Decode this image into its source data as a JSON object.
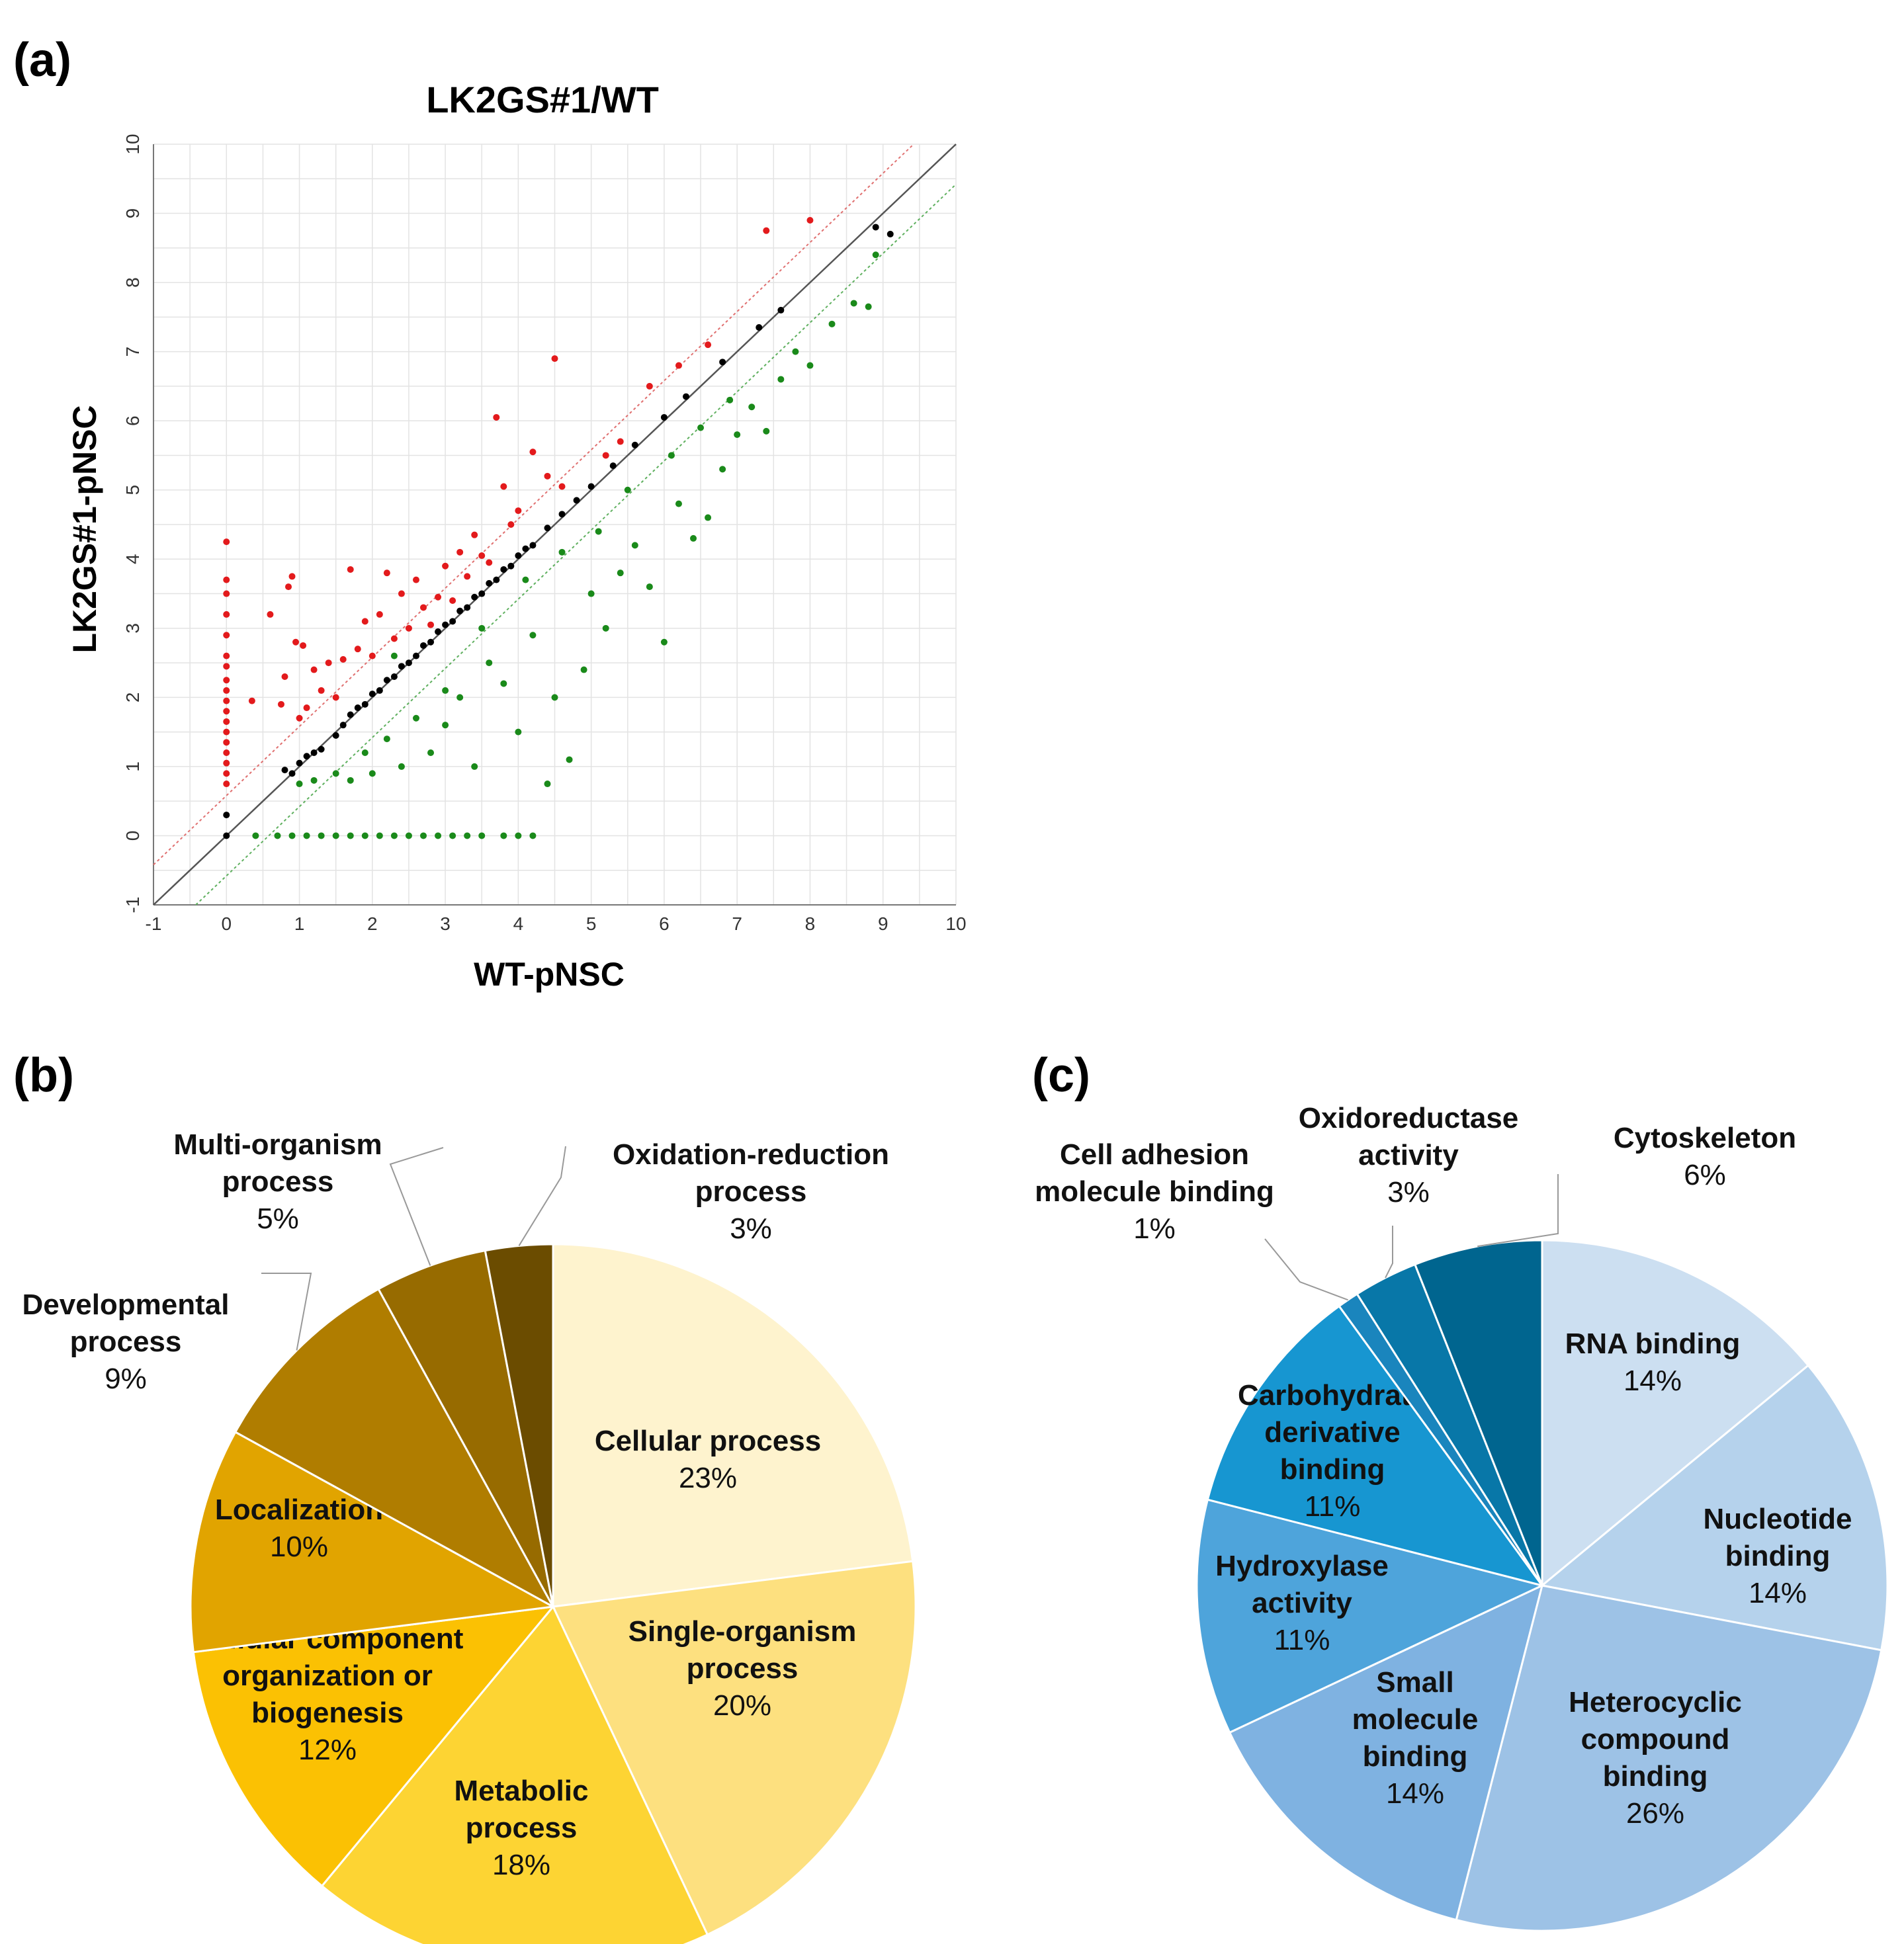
{
  "panels": {
    "a": {
      "label": "(a)"
    },
    "b": {
      "label": "(b)"
    },
    "c": {
      "label": "(c)"
    }
  },
  "chart_data": [
    {
      "type": "scatter",
      "title": "LK2GS#1/WT",
      "xlabel": "WT-pNSC",
      "ylabel": "LK2GS#1-pNSC",
      "xlim": [
        -1,
        10
      ],
      "ylim": [
        -1,
        10
      ],
      "xticks": [
        "-1",
        "0",
        "1",
        "2",
        "3",
        "4",
        "5",
        "6",
        "7",
        "8",
        "9",
        "10"
      ],
      "yticks": [
        "-1",
        "0",
        "1",
        "2",
        "3",
        "4",
        "5",
        "6",
        "7",
        "8",
        "9",
        "10"
      ],
      "grid": true,
      "reference_lines": [
        {
          "name": "identity",
          "slope": 1,
          "intercept": 0,
          "color": "#555555"
        },
        {
          "name": "up-threshold",
          "slope": 1,
          "intercept": 0.58,
          "color": "#e07070"
        },
        {
          "name": "down-threshold",
          "slope": 1,
          "intercept": -0.58,
          "color": "#5fb05f"
        }
      ],
      "series": [
        {
          "name": "up-regulated",
          "color": "#e31a1c",
          "points": [
            [
              0,
              0.75
            ],
            [
              0,
              0.9
            ],
            [
              0,
              1.05
            ],
            [
              0,
              1.2
            ],
            [
              0,
              1.35
            ],
            [
              0,
              1.5
            ],
            [
              0,
              1.65
            ],
            [
              0,
              1.8
            ],
            [
              0,
              1.95
            ],
            [
              0,
              2.1
            ],
            [
              0,
              2.25
            ],
            [
              0,
              2.45
            ],
            [
              0,
              2.6
            ],
            [
              0,
              2.9
            ],
            [
              0,
              3.2
            ],
            [
              0,
              3.5
            ],
            [
              0,
              3.7
            ],
            [
              0,
              4.25
            ],
            [
              0.35,
              1.95
            ],
            [
              0.6,
              3.2
            ],
            [
              0.75,
              1.9
            ],
            [
              0.8,
              2.3
            ],
            [
              0.85,
              3.6
            ],
            [
              0.9,
              3.75
            ],
            [
              0.95,
              2.8
            ],
            [
              1.0,
              1.7
            ],
            [
              1.05,
              2.75
            ],
            [
              1.1,
              1.85
            ],
            [
              1.2,
              2.4
            ],
            [
              1.3,
              2.1
            ],
            [
              1.4,
              2.5
            ],
            [
              1.5,
              2.0
            ],
            [
              1.6,
              2.55
            ],
            [
              1.7,
              3.85
            ],
            [
              1.8,
              2.7
            ],
            [
              1.9,
              3.1
            ],
            [
              2.0,
              2.6
            ],
            [
              2.1,
              3.2
            ],
            [
              2.2,
              3.8
            ],
            [
              2.3,
              2.85
            ],
            [
              2.4,
              3.5
            ],
            [
              2.5,
              3.0
            ],
            [
              2.6,
              3.7
            ],
            [
              2.7,
              3.3
            ],
            [
              2.8,
              3.05
            ],
            [
              2.9,
              3.45
            ],
            [
              3.0,
              3.9
            ],
            [
              3.1,
              3.4
            ],
            [
              3.2,
              4.1
            ],
            [
              3.3,
              3.75
            ],
            [
              3.4,
              4.35
            ],
            [
              3.5,
              4.05
            ],
            [
              3.6,
              3.95
            ],
            [
              3.7,
              6.05
            ],
            [
              3.8,
              5.05
            ],
            [
              3.9,
              4.5
            ],
            [
              4.0,
              4.7
            ],
            [
              4.2,
              5.55
            ],
            [
              4.4,
              5.2
            ],
            [
              4.5,
              6.9
            ],
            [
              4.6,
              5.05
            ],
            [
              5.2,
              5.5
            ],
            [
              5.4,
              5.7
            ],
            [
              5.8,
              6.5
            ],
            [
              6.2,
              6.8
            ],
            [
              6.6,
              7.1
            ],
            [
              7.4,
              8.75
            ],
            [
              8.0,
              8.9
            ]
          ]
        },
        {
          "name": "unchanged",
          "color": "#000000",
          "points": [
            [
              0,
              0
            ],
            [
              0,
              0.3
            ],
            [
              0.8,
              0.95
            ],
            [
              0.9,
              0.9
            ],
            [
              1.0,
              1.05
            ],
            [
              1.1,
              1.15
            ],
            [
              1.2,
              1.2
            ],
            [
              1.3,
              1.25
            ],
            [
              1.5,
              1.45
            ],
            [
              1.6,
              1.6
            ],
            [
              1.7,
              1.75
            ],
            [
              1.8,
              1.85
            ],
            [
              1.9,
              1.9
            ],
            [
              2.0,
              2.05
            ],
            [
              2.1,
              2.1
            ],
            [
              2.2,
              2.25
            ],
            [
              2.3,
              2.3
            ],
            [
              2.4,
              2.45
            ],
            [
              2.5,
              2.5
            ],
            [
              2.6,
              2.6
            ],
            [
              2.7,
              2.75
            ],
            [
              2.8,
              2.8
            ],
            [
              2.9,
              2.95
            ],
            [
              3.0,
              3.05
            ],
            [
              3.1,
              3.1
            ],
            [
              3.2,
              3.25
            ],
            [
              3.3,
              3.3
            ],
            [
              3.4,
              3.45
            ],
            [
              3.5,
              3.5
            ],
            [
              3.6,
              3.65
            ],
            [
              3.7,
              3.7
            ],
            [
              3.8,
              3.85
            ],
            [
              3.9,
              3.9
            ],
            [
              4.0,
              4.05
            ],
            [
              4.1,
              4.15
            ],
            [
              4.2,
              4.2
            ],
            [
              4.4,
              4.45
            ],
            [
              4.6,
              4.65
            ],
            [
              4.8,
              4.85
            ],
            [
              5.0,
              5.05
            ],
            [
              5.3,
              5.35
            ],
            [
              5.6,
              5.65
            ],
            [
              6.0,
              6.05
            ],
            [
              6.3,
              6.35
            ],
            [
              6.8,
              6.85
            ],
            [
              7.3,
              7.35
            ],
            [
              7.6,
              7.6
            ],
            [
              8.9,
              8.8
            ],
            [
              9.1,
              8.7
            ]
          ]
        },
        {
          "name": "down-regulated",
          "color": "#1a8a1a",
          "points": [
            [
              0.4,
              0
            ],
            [
              0.7,
              0
            ],
            [
              0.9,
              0
            ],
            [
              1.1,
              0
            ],
            [
              1.3,
              0
            ],
            [
              1.5,
              0
            ],
            [
              1.7,
              0
            ],
            [
              1.9,
              0
            ],
            [
              2.1,
              0
            ],
            [
              2.3,
              0
            ],
            [
              2.5,
              0
            ],
            [
              2.7,
              0
            ],
            [
              2.9,
              0
            ],
            [
              3.1,
              0
            ],
            [
              3.3,
              0
            ],
            [
              3.5,
              0
            ],
            [
              3.8,
              0
            ],
            [
              4.0,
              0
            ],
            [
              4.2,
              0
            ],
            [
              1.0,
              0.75
            ],
            [
              1.2,
              0.8
            ],
            [
              1.5,
              0.9
            ],
            [
              1.7,
              0.8
            ],
            [
              1.9,
              1.2
            ],
            [
              2.0,
              0.9
            ],
            [
              2.2,
              1.4
            ],
            [
              2.4,
              1.0
            ],
            [
              2.6,
              1.7
            ],
            [
              2.8,
              1.2
            ],
            [
              3.0,
              1.6
            ],
            [
              3.2,
              2.0
            ],
            [
              3.4,
              1.0
            ],
            [
              3.6,
              2.5
            ],
            [
              3.8,
              2.2
            ],
            [
              4.0,
              1.5
            ],
            [
              4.2,
              2.9
            ],
            [
              4.4,
              0.75
            ],
            [
              4.5,
              2.0
            ],
            [
              4.7,
              1.1
            ],
            [
              4.9,
              2.4
            ],
            [
              5.0,
              3.5
            ],
            [
              5.2,
              3.0
            ],
            [
              5.4,
              3.8
            ],
            [
              5.6,
              4.2
            ],
            [
              5.8,
              3.6
            ],
            [
              6.0,
              2.8
            ],
            [
              6.2,
              4.8
            ],
            [
              6.4,
              4.3
            ],
            [
              6.6,
              4.6
            ],
            [
              6.8,
              5.3
            ],
            [
              7.0,
              5.8
            ],
            [
              7.2,
              6.2
            ],
            [
              7.4,
              5.85
            ],
            [
              7.6,
              6.6
            ],
            [
              7.8,
              7.0
            ],
            [
              8.0,
              6.8
            ],
            [
              8.3,
              7.4
            ],
            [
              8.6,
              7.7
            ],
            [
              8.9,
              8.4
            ],
            [
              8.8,
              7.65
            ],
            [
              2.3,
              2.6
            ],
            [
              3.0,
              2.1
            ],
            [
              3.5,
              3.0
            ],
            [
              4.1,
              3.7
            ],
            [
              4.6,
              4.1
            ],
            [
              5.1,
              4.4
            ],
            [
              5.5,
              5.0
            ],
            [
              6.1,
              5.5
            ],
            [
              6.5,
              5.9
            ],
            [
              6.9,
              6.3
            ]
          ]
        }
      ]
    },
    {
      "type": "pie",
      "slices": [
        {
          "label_lines": [
            "Cellular process"
          ],
          "percent_label": "23%",
          "value": 23,
          "color": "#FEF3CE"
        },
        {
          "label_lines": [
            "Single-organism",
            "process"
          ],
          "percent_label": "20%",
          "value": 20,
          "color": "#FDE07F"
        },
        {
          "label_lines": [
            "Metabolic",
            "process"
          ],
          "percent_label": "18%",
          "value": 18,
          "color": "#FDD433"
        },
        {
          "label_lines": [
            "Cellular component",
            "organization or",
            "biogenesis"
          ],
          "percent_label": "12%",
          "value": 12,
          "color": "#FBC103"
        },
        {
          "label_lines": [
            "Localization"
          ],
          "percent_label": "10%",
          "value": 10,
          "color": "#E1A400"
        },
        {
          "label_lines": [
            "Developmental",
            "process"
          ],
          "percent_label": "9%",
          "value": 9,
          "color": "#B07D00"
        },
        {
          "label_lines": [
            "Multi-organism",
            "process"
          ],
          "percent_label": "5%",
          "value": 5,
          "color": "#976B00"
        },
        {
          "label_lines": [
            "Oxidation-reduction",
            "process"
          ],
          "percent_label": "3%",
          "value": 3,
          "color": "#6B4C00"
        }
      ]
    },
    {
      "type": "pie",
      "slices": [
        {
          "label_lines": [
            "RNA binding"
          ],
          "percent_label": "14%",
          "value": 14,
          "color": "#CCDFF1"
        },
        {
          "label_lines": [
            "Nucleotide",
            "binding"
          ],
          "percent_label": "14%",
          "value": 14,
          "color": "#B5D2EC"
        },
        {
          "label_lines": [
            "Heterocyclic",
            "compound",
            "binding"
          ],
          "percent_label": "26%",
          "value": 26,
          "color": "#9DC2E6"
        },
        {
          "label_lines": [
            "Small",
            "molecule",
            "binding"
          ],
          "percent_label": "14%",
          "value": 14,
          "color": "#7FB2E1"
        },
        {
          "label_lines": [
            "Hydroxylase",
            "activity"
          ],
          "percent_label": "11%",
          "value": 11,
          "color": "#4EA4DB"
        },
        {
          "label_lines": [
            "Carbohydrate",
            "derivative",
            "binding"
          ],
          "percent_label": "11%",
          "value": 11,
          "color": "#1796D1"
        },
        {
          "label_lines": [
            "Cell adhesion",
            "molecule binding"
          ],
          "percent_label": "1%",
          "value": 1,
          "color": "#1A85BD"
        },
        {
          "label_lines": [
            "Oxidoreductase",
            "activity"
          ],
          "percent_label": "3%",
          "value": 3,
          "color": "#0877A8"
        },
        {
          "label_lines": [
            "Cytoskeleton"
          ],
          "percent_label": "6%",
          "value": 6,
          "color": "#00658F"
        }
      ]
    }
  ]
}
